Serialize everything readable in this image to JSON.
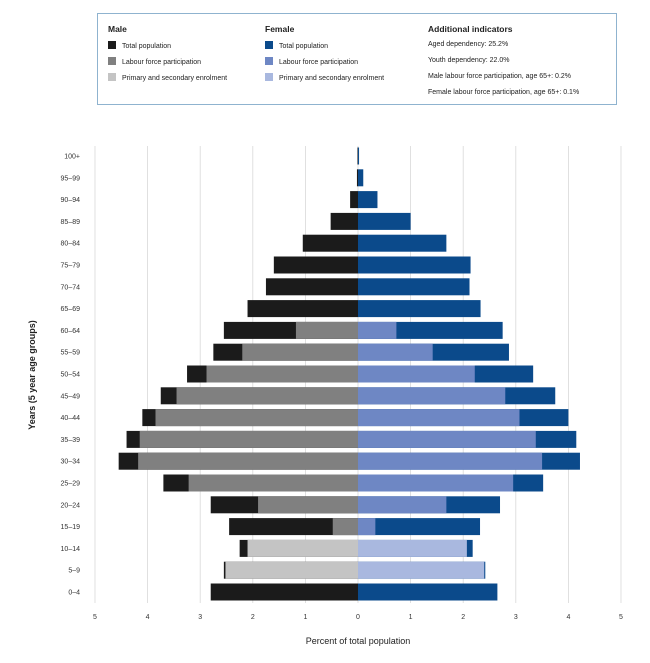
{
  "legend": {
    "male_heading": "Male",
    "female_heading": "Female",
    "additional_heading": "Additional indicators",
    "male_items": [
      "Total population",
      "Labour force participation",
      "Primary and secondary enrolment"
    ],
    "female_items": [
      "Total population",
      "Labour force participation",
      "Primary and secondary enrolment"
    ],
    "indicators": [
      "Aged dependency: 25.2%",
      "Youth dependency: 22.0%",
      "Male labour force participation, age 65+: 0.2%",
      "Female labour force participation, age 65+: 0.1%"
    ]
  },
  "colors": {
    "male_total": "#1b1b1b",
    "male_labour": "#808080",
    "male_enrol": "#c4c4c4",
    "female_total": "#0b4a8b",
    "female_labour": "#6e87c4",
    "female_enrol": "#a9b8df",
    "grid": "#d8d8d8",
    "legend_border": "#8fb3cf"
  },
  "chart_data": {
    "type": "bar",
    "orientation": "horizontal",
    "ylabel": "Years (5 year age groups)",
    "xlabel": "Percent of total population",
    "xlim": [
      -5,
      5
    ],
    "xticks": [
      5,
      4,
      3,
      2,
      1,
      0,
      1,
      2,
      3,
      4,
      5
    ],
    "grid": true,
    "categories": [
      "0–4",
      "5–9",
      "10–14",
      "15–19",
      "20–24",
      "25–29",
      "30–34",
      "35–39",
      "40–44",
      "45–49",
      "50–54",
      "55–59",
      "60–64",
      "65–69",
      "70–74",
      "75–79",
      "80–84",
      "85–89",
      "90–94",
      "95–99",
      "100+"
    ],
    "male_total": [
      2.8,
      2.55,
      2.25,
      2.45,
      2.8,
      3.7,
      4.55,
      4.4,
      4.1,
      3.75,
      3.25,
      2.75,
      2.55,
      2.1,
      1.75,
      1.6,
      1.05,
      0.52,
      0.15,
      0.02,
      0.01
    ],
    "male_labour": [
      0,
      0,
      0,
      0.48,
      1.9,
      3.22,
      4.18,
      4.15,
      3.85,
      3.45,
      2.88,
      2.2,
      1.18,
      0,
      0,
      0,
      0,
      0,
      0,
      0,
      0
    ],
    "male_enrol": [
      0,
      2.52,
      2.1,
      0,
      0,
      0,
      0,
      0,
      0,
      0,
      0,
      0,
      0,
      0,
      0,
      0,
      0,
      0,
      0,
      0,
      0
    ],
    "female_total": [
      2.65,
      2.42,
      2.18,
      2.32,
      2.7,
      3.52,
      4.22,
      4.15,
      4.0,
      3.75,
      3.33,
      2.87,
      2.75,
      2.33,
      2.12,
      2.14,
      1.68,
      1.0,
      0.37,
      0.1,
      0.02
    ],
    "female_labour": [
      0,
      0,
      0,
      0.33,
      1.68,
      2.95,
      3.5,
      3.38,
      3.07,
      2.8,
      2.22,
      1.42,
      0.73,
      0,
      0,
      0,
      0,
      0,
      0,
      0,
      0
    ],
    "female_enrol": [
      0,
      2.4,
      2.07,
      0,
      0,
      0,
      0,
      0,
      0,
      0,
      0,
      0,
      0,
      0,
      0,
      0,
      0,
      0,
      0,
      0,
      0
    ]
  }
}
